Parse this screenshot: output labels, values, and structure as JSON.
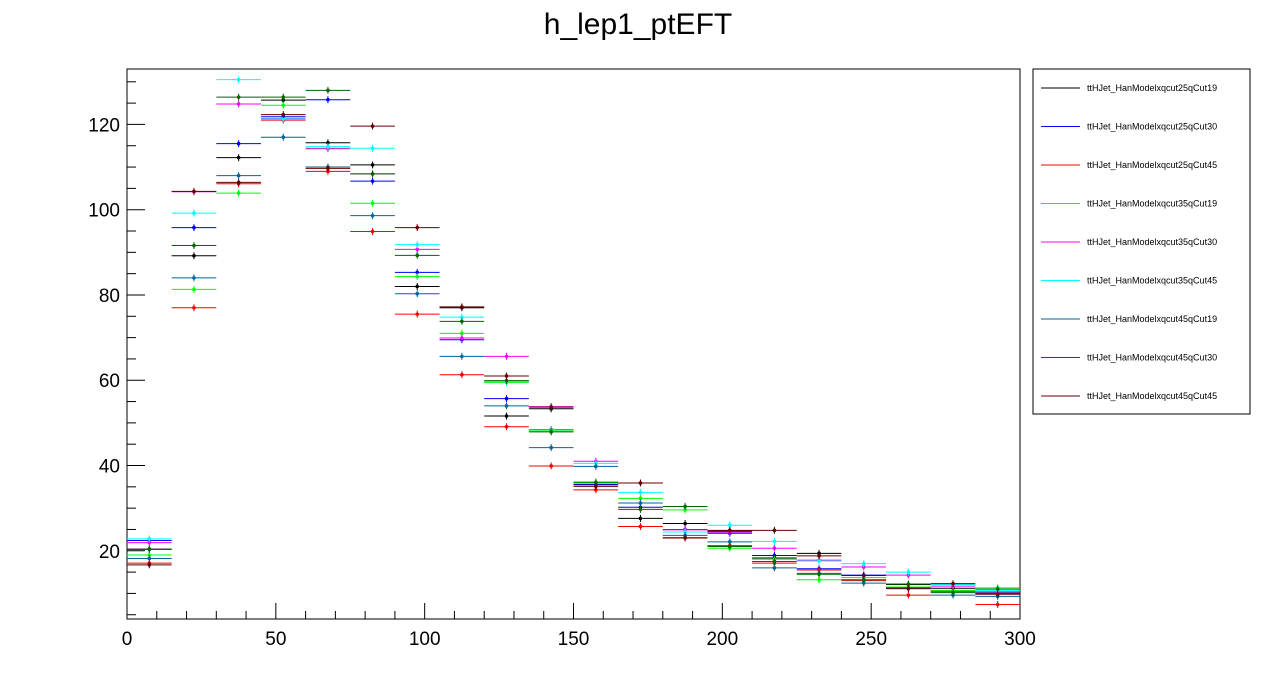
{
  "chart_data": {
    "type": "line",
    "title": "h_lep1_ptEFT",
    "xlabel": "",
    "ylabel": "",
    "xlim": [
      0,
      300
    ],
    "ylim": [
      4,
      133
    ],
    "grid": false,
    "legend_position": "right",
    "x_ticks": [
      0,
      50,
      100,
      150,
      200,
      250,
      300
    ],
    "y_ticks": [
      20,
      40,
      60,
      80,
      100,
      120
    ],
    "bin_width": 15,
    "x": [
      7.5,
      22.5,
      37.5,
      52.5,
      67.5,
      82.5,
      97.5,
      112.5,
      127.5,
      142.5,
      157.5,
      172.5,
      187.5,
      202.5,
      217.5,
      232.5,
      247.5,
      262.5,
      277.5,
      292.5
    ],
    "series": [
      {
        "name": "ttHJet_HanModelxqcut25qCut19",
        "color": "#000000",
        "values": [
          20.4,
          89.2,
          112.2,
          125.7,
          115.7,
          110.5,
          82.0,
          77.0,
          51.6,
          53.3,
          35.6,
          27.6,
          26.4,
          24.6,
          18.3,
          19.4,
          14.2,
          12.1,
          11.2,
          10.1
        ]
      },
      {
        "name": "ttHJet_HanModelxqcut25qCut30",
        "color": "#0000ff",
        "values": [
          22.4,
          95.8,
          115.5,
          121.8,
          125.8,
          106.7,
          85.3,
          69.5,
          55.7,
          48.4,
          35.5,
          30.2,
          25.0,
          24.1,
          18.9,
          15.8,
          14.3,
          11.4,
          10.5,
          10.0
        ]
      },
      {
        "name": "ttHJet_HanModelxqcut25qCut45",
        "color": "#ff0000",
        "values": [
          17.1,
          77.0,
          106.1,
          121.0,
          109.0,
          94.9,
          75.5,
          61.3,
          49.1,
          39.9,
          34.3,
          25.7,
          23.1,
          21.2,
          17.1,
          15.5,
          13.0,
          9.6,
          10.6,
          7.4
        ]
      },
      {
        "name": "ttHJet_HanModelxqcut35qCut19",
        "color": "#00ff00",
        "values": [
          19.0,
          81.3,
          103.9,
          124.5,
          114.4,
          101.5,
          84.3,
          71.0,
          59.5,
          48.3,
          36.0,
          32.3,
          29.6,
          20.6,
          18.0,
          13.2,
          13.7,
          11.5,
          10.7,
          11.3
        ]
      },
      {
        "name": "ttHJet_HanModelxqcut35qCut30",
        "color": "#ff00ff",
        "values": [
          21.9,
          104.2,
          124.8,
          121.4,
          114.3,
          108.4,
          90.7,
          69.9,
          65.6,
          53.8,
          41.0,
          35.9,
          24.9,
          24.4,
          20.6,
          17.8,
          16.2,
          14.3,
          11.7,
          10.4
        ]
      },
      {
        "name": "ttHJet_HanModelxqcut35qCut45",
        "color": "#00ffff",
        "values": [
          22.8,
          99.2,
          130.5,
          121.3,
          114.8,
          114.4,
          91.8,
          74.8,
          59.7,
          48.0,
          40.5,
          33.7,
          24.4,
          26.0,
          22.2,
          17.6,
          17.0,
          15.0,
          12.1,
          10.7
        ]
      },
      {
        "name": "ttHJet_HanModelxqcut45qCut19",
        "color": "#006699",
        "values": [
          18.2,
          84.0,
          108.0,
          117.0,
          110.0,
          98.6,
          80.3,
          65.6,
          54.0,
          44.2,
          39.8,
          31.2,
          23.6,
          22.1,
          16.0,
          14.7,
          12.4,
          11.1,
          9.6,
          9.3
        ]
      },
      {
        "name": "ttHJet_HanModelxqcut45qCut30",
        "color": "#006600",
        "values": [
          20.3,
          91.6,
          126.4,
          126.4,
          128.0,
          108.4,
          89.3,
          73.8,
          59.9,
          47.9,
          36.1,
          29.7,
          30.4,
          21.0,
          17.5,
          14.5,
          13.2,
          12.2,
          10.2,
          11.0
        ]
      },
      {
        "name": "ttHJet_HanModelxqcut45qCut45",
        "color": "#660000",
        "values": [
          16.7,
          104.3,
          106.4,
          122.3,
          109.7,
          119.6,
          95.8,
          77.2,
          61.0,
          53.7,
          35.1,
          35.9,
          23.0,
          24.8,
          24.8,
          18.8,
          14.2,
          11.2,
          12.3,
          9.8
        ]
      }
    ]
  }
}
